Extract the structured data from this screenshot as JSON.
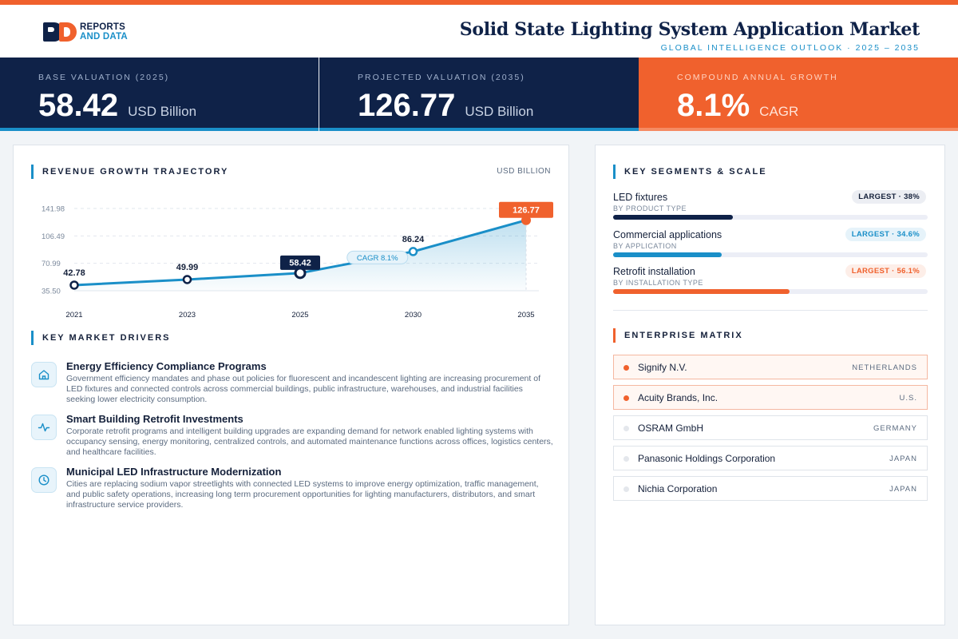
{
  "header": {
    "logo_line1": "REPORTS",
    "logo_line2": "AND DATA",
    "title": "Solid State Lighting System Application Market",
    "subtitle": "GLOBAL INTELLIGENCE OUTLOOK  ·  2025 – 2035"
  },
  "kpis": [
    {
      "label": "BASE VALUATION (2025)",
      "value": "58.42",
      "unit": "USD Billion"
    },
    {
      "label": "PROJECTED VALUATION (2035)",
      "value": "126.77",
      "unit": "USD Billion"
    },
    {
      "label": "COMPOUND ANNUAL GROWTH",
      "value": "8.1%",
      "unit": "CAGR"
    }
  ],
  "revenue": {
    "section_title": "REVENUE GROWTH TRAJECTORY",
    "unit_label": "USD BILLION",
    "cagr_label": "CAGR 8.1%"
  },
  "chart_data": {
    "type": "area",
    "x": [
      "2021",
      "2023",
      "2025",
      "2030",
      "2035"
    ],
    "values": [
      42.78,
      49.99,
      58.42,
      86.24,
      126.77
    ],
    "labels": [
      "42.78",
      "49.99",
      "58.42",
      "86.24",
      "126.77"
    ],
    "yticks": [
      "141.98",
      "106.49",
      "70.99",
      "35.50"
    ],
    "ytick_values": [
      141.98,
      106.49,
      70.99,
      35.5
    ],
    "ylim": [
      35.5,
      141.98
    ],
    "highlight_index": 2,
    "end_index": 4,
    "colors": {
      "line": "#1a8fc8",
      "highlight": "#0f2248",
      "end": "#f0612d"
    }
  },
  "drivers": {
    "section_title": "KEY MARKET DRIVERS",
    "items": [
      {
        "icon": "home-icon",
        "title": "Energy Efficiency Compliance Programs",
        "desc": "Government efficiency mandates and phase out policies for fluorescent and incandescent lighting are increasing procurement of LED fixtures and connected controls across commercial buildings, public infrastructure, warehouses, and industrial facilities seeking lower electricity consumption."
      },
      {
        "icon": "pulse-icon",
        "title": "Smart Building Retrofit Investments",
        "desc": "Corporate retrofit programs and intelligent building upgrades are expanding demand for network enabled lighting systems with occupancy sensing, energy monitoring, centralized controls, and automated maintenance functions across offices, logistics centers, and healthcare facilities."
      },
      {
        "icon": "clock-icon",
        "title": "Municipal LED Infrastructure Modernization",
        "desc": "Cities are replacing sodium vapor streetlights with connected LED systems to improve energy optimization, traffic management, and public safety operations, increasing long term procurement opportunities for lighting manufacturers, distributors, and smart infrastructure service providers."
      }
    ]
  },
  "segments": {
    "section_title": "KEY SEGMENTS & SCALE",
    "items": [
      {
        "name": "LED fixtures",
        "sub": "BY PRODUCT TYPE",
        "badge": "LARGEST · 38%",
        "share": 0.38,
        "color": "#0f2248",
        "badge_bg": "#eceef3",
        "badge_fg": "#14203a"
      },
      {
        "name": "Commercial applications",
        "sub": "BY APPLICATION",
        "badge": "LARGEST · 34.6%",
        "share": 0.346,
        "color": "#1a8fc8",
        "badge_bg": "#e6f3fa",
        "badge_fg": "#1a8fc8"
      },
      {
        "name": "Retrofit installation",
        "sub": "BY INSTALLATION TYPE",
        "badge": "LARGEST · 56.1%",
        "share": 0.561,
        "color": "#f0612d",
        "badge_bg": "#fdeee8",
        "badge_fg": "#f0612d"
      }
    ]
  },
  "enterprise": {
    "section_title": "ENTERPRISE MATRIX",
    "items": [
      {
        "name": "Signify N.V.",
        "country": "NETHERLANDS",
        "highlight": true
      },
      {
        "name": "Acuity Brands, Inc.",
        "country": "U.S.",
        "highlight": true
      },
      {
        "name": "OSRAM GmbH",
        "country": "GERMANY",
        "highlight": false
      },
      {
        "name": "Panasonic Holdings Corporation",
        "country": "JAPAN",
        "highlight": false
      },
      {
        "name": "Nichia Corporation",
        "country": "JAPAN",
        "highlight": false
      }
    ]
  }
}
